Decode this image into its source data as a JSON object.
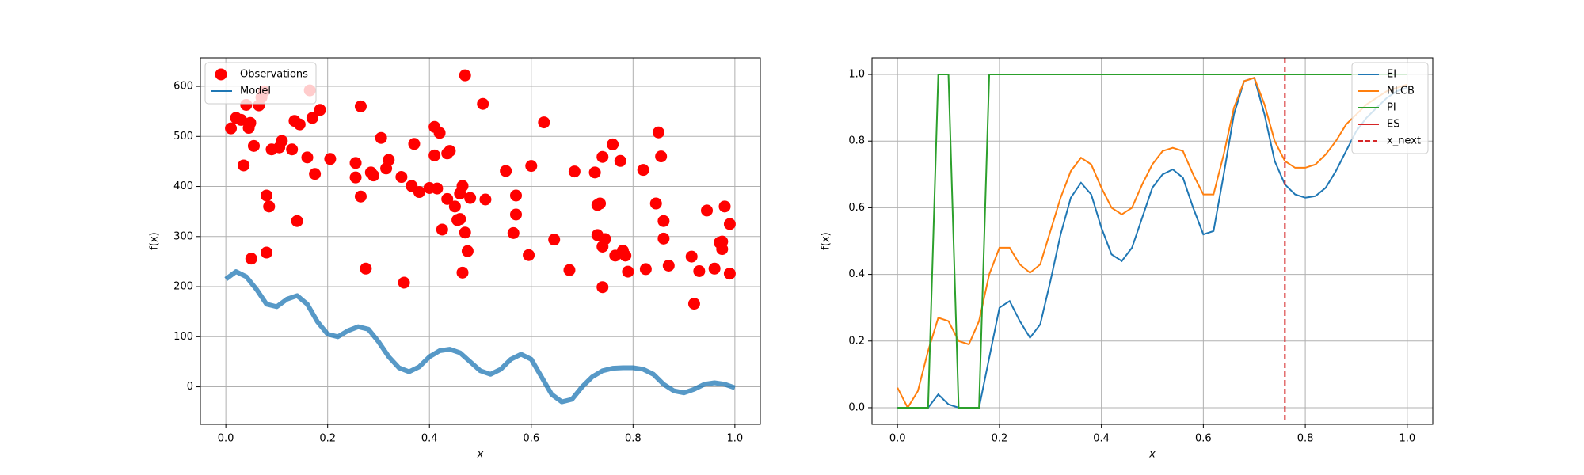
{
  "chart_data": [
    {
      "type": "scatter",
      "xlabel": "x",
      "ylabel": "f(x)",
      "xlim": [
        -0.05,
        1.05
      ],
      "ylim": [
        -75,
        657
      ],
      "grid": true,
      "legend": "upper left",
      "xticks": [
        {
          "value": 0,
          "label": "0.0"
        },
        {
          "value": 0.2,
          "label": "0.2"
        },
        {
          "value": 0.4,
          "label": "0.4"
        },
        {
          "value": 0.6,
          "label": "0.6"
        },
        {
          "value": 0.8,
          "label": "0.8"
        },
        {
          "value": 1,
          "label": "1.0"
        }
      ],
      "yticks": [
        0,
        100,
        200,
        300,
        400,
        500,
        600
      ],
      "series": [
        {
          "name": "Observations",
          "color": "#ff0000",
          "kind": "points",
          "x": [
            0.01,
            0.02,
            0.03,
            0.035,
            0.04,
            0.045,
            0.048,
            0.05,
            0.055,
            0.065,
            0.07,
            0.075,
            0.08,
            0.08,
            0.085,
            0.09,
            0.105,
            0.11,
            0.13,
            0.135,
            0.14,
            0.145,
            0.16,
            0.165,
            0.17,
            0.175,
            0.185,
            0.205,
            0.255,
            0.255,
            0.265,
            0.265,
            0.275,
            0.285,
            0.29,
            0.305,
            0.315,
            0.32,
            0.345,
            0.35,
            0.365,
            0.37,
            0.38,
            0.4,
            0.41,
            0.41,
            0.415,
            0.42,
            0.425,
            0.435,
            0.435,
            0.44,
            0.45,
            0.455,
            0.46,
            0.46,
            0.465,
            0.465,
            0.47,
            0.47,
            0.475,
            0.48,
            0.505,
            0.51,
            0.55,
            0.565,
            0.57,
            0.57,
            0.595,
            0.6,
            0.625,
            0.645,
            0.675,
            0.685,
            0.725,
            0.73,
            0.73,
            0.735,
            0.74,
            0.74,
            0.74,
            0.745,
            0.76,
            0.765,
            0.775,
            0.78,
            0.785,
            0.79,
            0.82,
            0.825,
            0.845,
            0.85,
            0.855,
            0.86,
            0.86,
            0.87,
            0.915,
            0.92,
            0.93,
            0.945,
            0.96,
            0.97,
            0.975,
            0.975,
            0.98,
            0.99,
            0.99
          ],
          "values": [
            516,
            537,
            533,
            442,
            563,
            517,
            527,
            256,
            481,
            562,
            578,
            590,
            382,
            268,
            360,
            474,
            478,
            491,
            474,
            531,
            331,
            524,
            458,
            592,
            537,
            425,
            553,
            455,
            447,
            418,
            560,
            380,
            236,
            428,
            422,
            497,
            436,
            453,
            419,
            208,
            401,
            485,
            389,
            397,
            462,
            519,
            396,
            507,
            314,
            375,
            466,
            471,
            360,
            333,
            386,
            335,
            228,
            401,
            308,
            622,
            271,
            377,
            565,
            374,
            431,
            307,
            382,
            344,
            263,
            441,
            528,
            294,
            233,
            430,
            428,
            363,
            303,
            366,
            280,
            199,
            459,
            295,
            484,
            262,
            451,
            272,
            262,
            230,
            433,
            235,
            366,
            508,
            460,
            331,
            296,
            242,
            260,
            166,
            231,
            352,
            236,
            288,
            275,
            290,
            360,
            226,
            325
          ]
        },
        {
          "name": "Model",
          "color": "#1f77b4",
          "kind": "band",
          "x": [
            0,
            0.02,
            0.04,
            0.06,
            0.08,
            0.1,
            0.12,
            0.14,
            0.16,
            0.18,
            0.2,
            0.22,
            0.24,
            0.26,
            0.28,
            0.3,
            0.32,
            0.34,
            0.36,
            0.38,
            0.4,
            0.42,
            0.44,
            0.46,
            0.48,
            0.5,
            0.52,
            0.54,
            0.56,
            0.58,
            0.6,
            0.62,
            0.64,
            0.66,
            0.68,
            0.7,
            0.72,
            0.74,
            0.76,
            0.78,
            0.8,
            0.82,
            0.84,
            0.86,
            0.88,
            0.9,
            0.92,
            0.94,
            0.96,
            0.98,
            1
          ],
          "values": [
            215,
            230,
            220,
            195,
            165,
            160,
            175,
            182,
            165,
            130,
            105,
            100,
            112,
            120,
            115,
            90,
            60,
            38,
            30,
            40,
            60,
            72,
            75,
            68,
            50,
            32,
            25,
            35,
            55,
            65,
            55,
            20,
            -15,
            -30,
            -25,
            0,
            20,
            32,
            37,
            38,
            38,
            35,
            25,
            5,
            -8,
            -12,
            -5,
            5,
            8,
            5,
            -2
          ]
        }
      ]
    },
    {
      "type": "line",
      "xlabel": "x",
      "ylabel": "f(x)",
      "xlim": [
        -0.05,
        1.05
      ],
      "ylim": [
        -0.05,
        1.05
      ],
      "grid": true,
      "legend": "upper right",
      "xticks": [
        {
          "value": 0,
          "label": "0.0"
        },
        {
          "value": 0.2,
          "label": "0.2"
        },
        {
          "value": 0.4,
          "label": "0.4"
        },
        {
          "value": 0.6,
          "label": "0.6"
        },
        {
          "value": 0.8,
          "label": "0.8"
        },
        {
          "value": 1,
          "label": "1.0"
        }
      ],
      "yticks": [
        {
          "value": 0,
          "label": "0.0"
        },
        {
          "value": 0.2,
          "label": "0.2"
        },
        {
          "value": 0.4,
          "label": "0.4"
        },
        {
          "value": 0.6,
          "label": "0.6"
        },
        {
          "value": 0.8,
          "label": "0.8"
        },
        {
          "value": 1,
          "label": "1.0"
        }
      ],
      "x": [
        0,
        0.02,
        0.04,
        0.06,
        0.08,
        0.1,
        0.12,
        0.14,
        0.16,
        0.18,
        0.2,
        0.22,
        0.24,
        0.26,
        0.28,
        0.3,
        0.32,
        0.34,
        0.36,
        0.38,
        0.4,
        0.42,
        0.44,
        0.46,
        0.48,
        0.5,
        0.52,
        0.54,
        0.56,
        0.58,
        0.6,
        0.62,
        0.64,
        0.66,
        0.68,
        0.7,
        0.72,
        0.74,
        0.76,
        0.78,
        0.8,
        0.82,
        0.84,
        0.86,
        0.88,
        0.9,
        0.92,
        0.94,
        0.96,
        0.98,
        1
      ],
      "series": [
        {
          "name": "EI",
          "color": "#1f77b4",
          "values": [
            0,
            0,
            0,
            0,
            0.04,
            0.01,
            0,
            0,
            0,
            0.15,
            0.3,
            0.32,
            0.26,
            0.21,
            0.25,
            0.38,
            0.52,
            0.63,
            0.675,
            0.64,
            0.54,
            0.46,
            0.44,
            0.48,
            0.57,
            0.66,
            0.7,
            0.715,
            0.69,
            0.6,
            0.52,
            0.53,
            0.7,
            0.88,
            0.98,
            0.99,
            0.88,
            0.74,
            0.67,
            0.64,
            0.63,
            0.635,
            0.66,
            0.71,
            0.77,
            0.83,
            0.87,
            0.9,
            0.93,
            0.95,
            0.96
          ]
        },
        {
          "name": "NLCB",
          "color": "#ff7f0e",
          "values": [
            0.06,
            0,
            0.05,
            0.17,
            0.27,
            0.26,
            0.2,
            0.19,
            0.26,
            0.4,
            0.48,
            0.48,
            0.43,
            0.405,
            0.43,
            0.53,
            0.63,
            0.71,
            0.75,
            0.73,
            0.66,
            0.6,
            0.58,
            0.6,
            0.67,
            0.73,
            0.77,
            0.78,
            0.77,
            0.7,
            0.64,
            0.64,
            0.76,
            0.9,
            0.98,
            0.99,
            0.91,
            0.8,
            0.74,
            0.72,
            0.72,
            0.73,
            0.76,
            0.8,
            0.85,
            0.88,
            0.91,
            0.93,
            0.95,
            0.96,
            0.97
          ]
        },
        {
          "name": "PI",
          "color": "#2ca02c",
          "values": [
            0,
            0,
            0,
            0,
            1,
            1,
            0,
            0,
            0,
            1,
            1,
            1,
            1,
            1,
            1,
            1,
            1,
            1,
            1,
            1,
            1,
            1,
            1,
            1,
            1,
            1,
            1,
            1,
            1,
            1,
            1,
            1,
            1,
            1,
            1,
            1,
            1,
            1,
            1,
            1,
            1,
            1,
            1,
            1,
            1,
            1,
            1,
            1,
            1,
            1,
            1
          ]
        },
        {
          "name": "ES",
          "color": "#d62728",
          "values": [
            null,
            null,
            null,
            null,
            null,
            null,
            null,
            null,
            null,
            null,
            null,
            null,
            null,
            null,
            null,
            null,
            null,
            null,
            null,
            null,
            null,
            null,
            null,
            null,
            null,
            null,
            null,
            null,
            null,
            null,
            null,
            null,
            null,
            null,
            null,
            null,
            null,
            null,
            null,
            null,
            null,
            null,
            null,
            null,
            null,
            null,
            null,
            null,
            null,
            null,
            null
          ]
        }
      ],
      "vlines": [
        {
          "name": "x_next",
          "x": 0.76,
          "color": "#d62728",
          "style": "dashed"
        }
      ]
    }
  ]
}
